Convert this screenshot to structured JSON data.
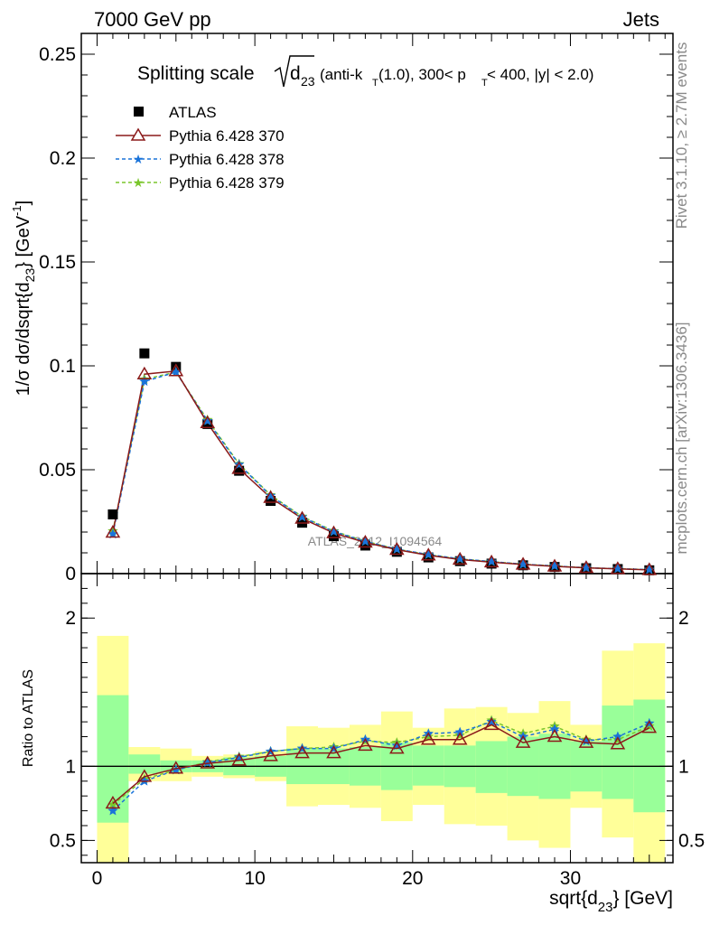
{
  "header": {
    "left": "7000 GeV pp",
    "right": "Jets"
  },
  "side_text": {
    "rivet": "Rivet 3.1.10, ≥ 2.7M events",
    "mcplots": "mcplots.cern.ch [arXiv:1306.3436]"
  },
  "watermark": "ATLAS_2012_I1094564",
  "chart_data": {
    "type": "line",
    "title": {
      "prefix": "Splitting scale",
      "sqrt_body": "d",
      "sqrt_sub": "23",
      "qualifier": "(anti-k",
      "qualifier_sub": "T",
      "qualifier_rest": "(1.0), 300< p",
      "qualifier_sub2": "T",
      "qualifier_end": " < 400, |y| < 2.0)"
    },
    "main": {
      "ylabel": "1/σ dσ/dsqrt{d",
      "ylabel_sub": "23",
      "ylabel_rest": "} [GeV",
      "ylabel_sup": "-1",
      "ylabel_end": "]",
      "ylim": [
        0,
        0.26
      ],
      "yticks": [
        0,
        0.05,
        0.1,
        0.15,
        0.2,
        0.25
      ],
      "ytick_labels": [
        "0",
        "0.05",
        "0.1",
        "0.15",
        "0.2",
        "0.25"
      ]
    },
    "ratio": {
      "ylabel": "Ratio to ATLAS",
      "ylim": [
        0.35,
        2.3
      ],
      "yticks": [
        0.5,
        1,
        2
      ],
      "ytick_labels": [
        "0.5",
        "1",
        "2"
      ]
    },
    "xlabel": "sqrt{d",
    "xlabel_sub": "23",
    "xlabel_rest": "} [GeV]",
    "xlim": [
      -1,
      36.5
    ],
    "xticks": [
      0,
      10,
      20,
      30
    ],
    "xtick_labels": [
      "0",
      "10",
      "20",
      "30"
    ],
    "bin_edges": [
      0,
      2,
      4,
      6,
      8,
      10,
      12,
      14,
      16,
      18,
      20,
      22,
      24,
      26,
      28,
      30,
      32,
      34,
      36
    ],
    "x": [
      1,
      3,
      5,
      7,
      9,
      11,
      13,
      15,
      17,
      19,
      21,
      23,
      25,
      27,
      29,
      31,
      33,
      35
    ],
    "series": [
      {
        "name": "ATLAS",
        "color": "#000000",
        "marker": "square",
        "values": [
          0.0285,
          0.106,
          0.0995,
          0.072,
          0.0495,
          0.035,
          0.0245,
          0.018,
          0.0135,
          0.0105,
          0.0078,
          0.006,
          0.0048,
          0.004,
          0.0032,
          0.0026,
          0.0022,
          0.0016
        ]
      },
      {
        "name": "Pythia 6.428 370",
        "color": "#8b1a1a",
        "marker": "triangle-open",
        "linestyle": "solid",
        "values": [
          0.0198,
          0.096,
          0.0975,
          0.0725,
          0.0505,
          0.0365,
          0.0265,
          0.0195,
          0.015,
          0.0115,
          0.0088,
          0.0068,
          0.0055,
          0.0044,
          0.0035,
          0.0028,
          0.0023,
          0.0018
        ]
      },
      {
        "name": "Pythia 6.428 378",
        "color": "#1a73d9",
        "marker": "star",
        "linestyle": "dashed",
        "values": [
          0.019,
          0.0925,
          0.097,
          0.0735,
          0.0525,
          0.0375,
          0.0272,
          0.0202,
          0.0155,
          0.0118,
          0.0092,
          0.0071,
          0.0058,
          0.0045,
          0.0037,
          0.0028,
          0.0024,
          0.0019
        ]
      },
      {
        "name": "Pythia 6.428 379",
        "color": "#7ac62b",
        "marker": "star",
        "linestyle": "dashed",
        "values": [
          0.0205,
          0.0935,
          0.097,
          0.074,
          0.0528,
          0.0378,
          0.0275,
          0.0205,
          0.0156,
          0.0118,
          0.0091,
          0.007,
          0.0058,
          0.0045,
          0.0037,
          0.0028,
          0.0024,
          0.0019
        ]
      }
    ],
    "ratio_series": [
      {
        "name": "Pythia 6.428 370",
        "values": [
          0.75,
          0.93,
          0.985,
          1.02,
          1.04,
          1.07,
          1.09,
          1.09,
          1.14,
          1.12,
          1.18,
          1.18,
          1.28,
          1.16,
          1.2,
          1.16,
          1.15,
          1.26
        ]
      },
      {
        "name": "Pythia 6.428 378",
        "values": [
          0.7,
          0.9,
          0.975,
          1.025,
          1.06,
          1.1,
          1.12,
          1.12,
          1.18,
          1.14,
          1.22,
          1.23,
          1.3,
          1.2,
          1.25,
          1.17,
          1.2,
          1.29
        ]
      },
      {
        "name": "Pythia 6.428 379",
        "values": [
          0.74,
          0.915,
          0.975,
          1.03,
          1.065,
          1.1,
          1.12,
          1.13,
          1.17,
          1.16,
          1.2,
          1.21,
          1.31,
          1.22,
          1.27,
          1.18,
          1.18,
          1.27
        ]
      }
    ],
    "uncertainty_bands": {
      "stat_color": "#99ff99",
      "total_color": "#ffff99",
      "stat_lo": [
        0.62,
        0.95,
        0.96,
        0.96,
        0.94,
        0.93,
        0.88,
        0.88,
        0.87,
        0.84,
        0.87,
        0.86,
        0.82,
        0.8,
        0.78,
        0.83,
        0.78,
        0.69
      ],
      "stat_hi": [
        1.48,
        1.08,
        1.04,
        1.04,
        1.06,
        1.07,
        1.12,
        1.12,
        1.13,
        1.16,
        1.14,
        1.14,
        1.17,
        1.2,
        1.22,
        1.17,
        1.41,
        1.45
      ],
      "total_lo": [
        0.3,
        0.9,
        0.9,
        0.93,
        0.92,
        0.9,
        0.73,
        0.74,
        0.72,
        0.63,
        0.74,
        0.61,
        0.6,
        0.5,
        0.45,
        0.72,
        0.52,
        0.3
      ],
      "total_hi": [
        1.88,
        1.13,
        1.12,
        1.07,
        1.08,
        1.1,
        1.27,
        1.26,
        1.28,
        1.37,
        1.26,
        1.39,
        1.4,
        1.36,
        1.44,
        1.28,
        1.78,
        1.83
      ]
    }
  }
}
